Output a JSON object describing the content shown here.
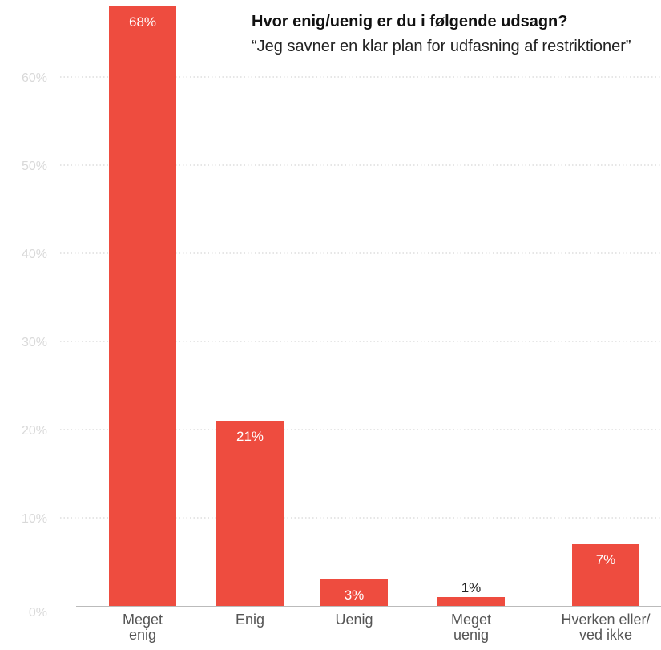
{
  "chart_data": {
    "type": "bar",
    "title": "Hvor enig/uenig er du i følgende udsagn?",
    "subtitle": "“Jeg savner en klar plan for udfasning af restriktioner”",
    "categories": [
      [
        "Meget",
        "enig"
      ],
      [
        "Enig"
      ],
      [
        "Uenig"
      ],
      [
        "Meget",
        "uenig"
      ],
      [
        "Hverken eller/",
        "ved ikke"
      ]
    ],
    "values": [
      68,
      21,
      3,
      1,
      7
    ],
    "value_labels": [
      "68%",
      "21%",
      "3%",
      "1%",
      "7%"
    ],
    "yticks": [
      "0%",
      "10%",
      "20%",
      "30%",
      "40%",
      "50%",
      "60%"
    ],
    "ylim": [
      0,
      70
    ],
    "grid": true,
    "bar_color": "#ee4c3f"
  }
}
